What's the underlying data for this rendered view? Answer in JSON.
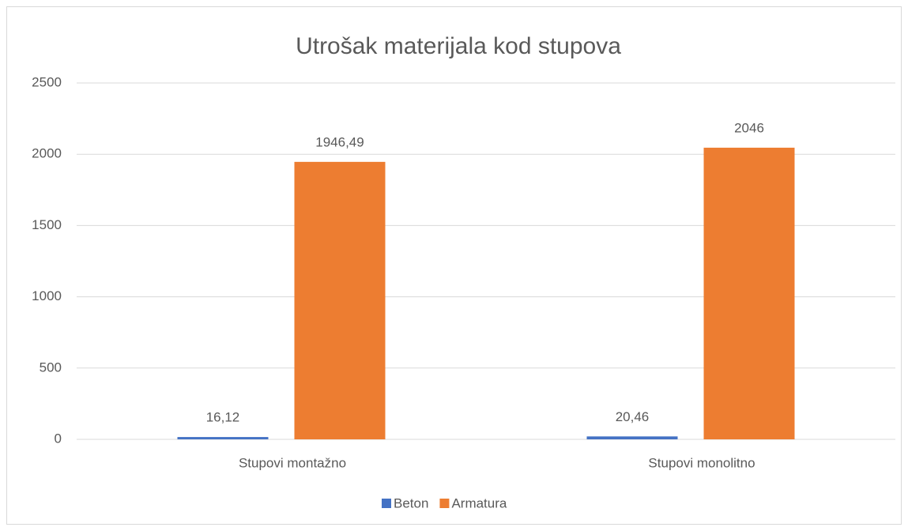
{
  "chart_data": {
    "type": "bar",
    "title": "Utrošak materijala kod stupova",
    "categories": [
      "Stupovi montažno",
      "Stupovi monolitno"
    ],
    "series": [
      {
        "name": "Beton",
        "color": "#4472c4",
        "values": [
          16.12,
          20.46
        ],
        "value_labels": [
          "16,12",
          "20,46"
        ]
      },
      {
        "name": "Armatura",
        "color": "#ed7d31",
        "values": [
          1946.49,
          2046
        ],
        "value_labels": [
          "1946,49",
          "2046"
        ]
      }
    ],
    "ylim": [
      0,
      2500
    ],
    "yticks": [
      0,
      500,
      1000,
      1500,
      2000,
      2500
    ],
    "grid": true,
    "legend": "bottom"
  }
}
